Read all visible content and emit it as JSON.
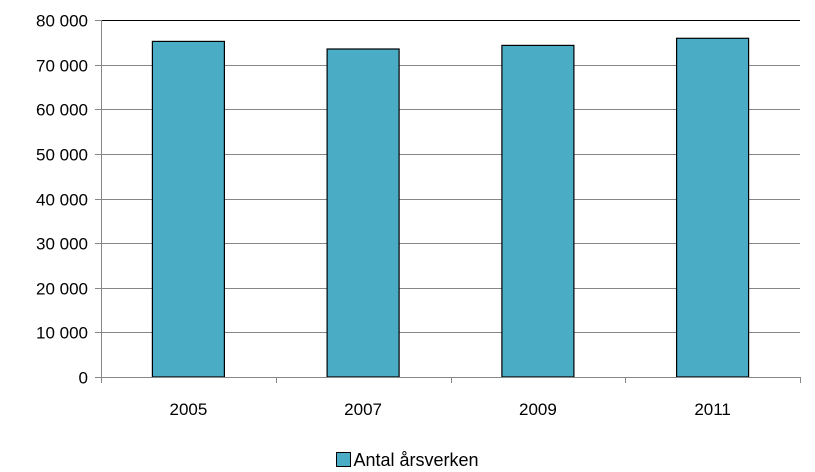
{
  "chart_data": {
    "type": "bar",
    "categories": [
      "2005",
      "2007",
      "2009",
      "2011"
    ],
    "series": [
      {
        "name": "Antal årsverken",
        "values": [
          75200,
          73500,
          74300,
          75900
        ],
        "color": "#4BACC6"
      }
    ],
    "ylim": [
      0,
      80000
    ],
    "yticks": [
      0,
      10000,
      20000,
      30000,
      40000,
      50000,
      60000,
      70000,
      80000
    ],
    "ytick_labels": [
      "0",
      "10 000",
      "20 000",
      "30 000",
      "40 000",
      "50 000",
      "60 000",
      "70 000",
      "80 000"
    ],
    "grid": true,
    "legend_position": "bottom"
  }
}
